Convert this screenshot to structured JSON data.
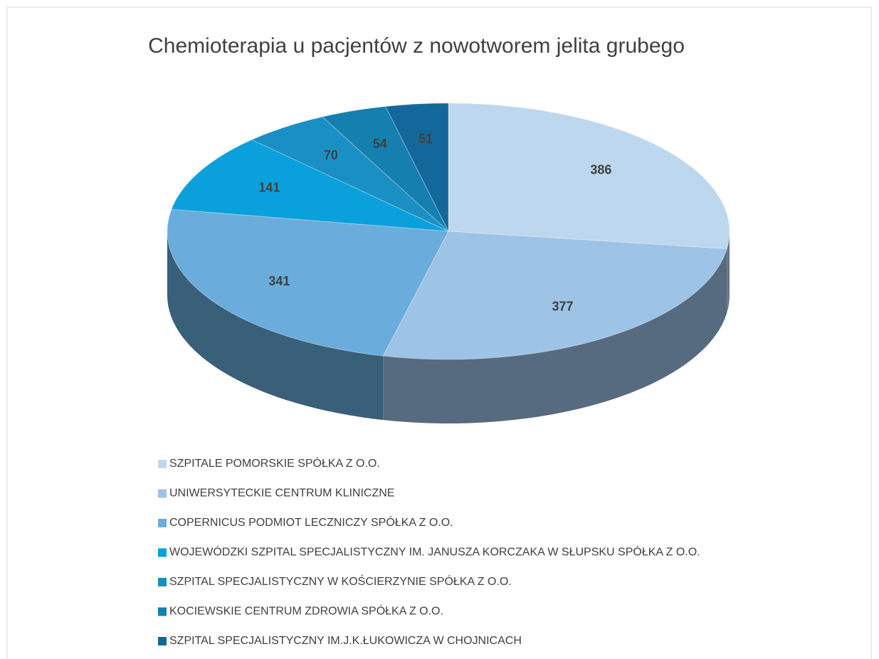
{
  "chart_data": {
    "type": "pie3d",
    "title": "Chemioterapia u pacjentów z nowotworem jelita grubego",
    "categories": [
      "SZPITALE POMORSKIE SPÓŁKA Z O.O.",
      "UNIWERSYTECKIE CENTRUM KLINICZNE",
      "COPERNICUS PODMIOT LECZNICZY SPÓŁKA Z O.O.",
      "WOJEWÓDZKI SZPITAL SPECJALISTYCZNY IM. JANUSZA KORCZAKA W SŁUPSKU SPÓŁKA Z O.O.",
      "SZPITAL SPECJALISTYCZNY W KOŚCIERZYNIE SPÓŁKA Z O.O.",
      "KOCIEWSKIE CENTRUM ZDROWIA SPÓŁKA Z O.O.",
      "SZPITAL SPECJALISTYCZNY IM.J.K.ŁUKOWICZA W CHOJNICACH"
    ],
    "values": [
      386,
      377,
      341,
      141,
      70,
      54,
      51
    ],
    "colors": [
      "#bdd7ee",
      "#9dc3e6",
      "#6aacdc",
      "#0aa0dc",
      "#1a8fc4",
      "#157fb0",
      "#14679a"
    ],
    "legend": "bottom"
  }
}
